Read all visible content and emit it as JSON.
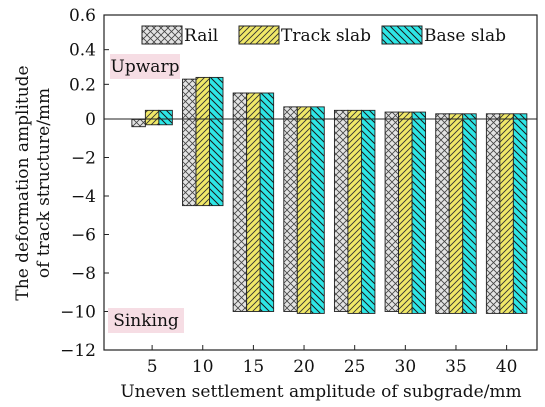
{
  "chart_data": {
    "type": "bar",
    "categories": [
      "5",
      "10",
      "15",
      "20",
      "25",
      "30",
      "35",
      "40"
    ],
    "xlabel": "Uneven settlement amplitude of subgrade/mm",
    "ylabel": [
      "The deformation amplitude",
      "of track structure/mm"
    ],
    "ylim": [
      -12,
      0.6
    ],
    "yticks": [
      "0.6",
      "0.4",
      "0.2",
      "0",
      "−2",
      "−4",
      "−6",
      "−8",
      "−10",
      "−12"
    ],
    "legend_position": "top",
    "series": [
      {
        "name": "Rail",
        "color": "#d9d9d9",
        "pattern": "crosshatch",
        "top": [
          -0.02,
          0.23,
          0.15,
          0.07,
          0.05,
          0.04,
          0.03,
          0.03
        ],
        "bottom": [
          -0.4,
          -4.5,
          -10.0,
          -10.0,
          -10.0,
          -10.0,
          -10.1,
          -10.1
        ]
      },
      {
        "name": "Track slab",
        "color": "#f0e868",
        "pattern": "diagonal",
        "top": [
          0.05,
          0.24,
          0.15,
          0.07,
          0.05,
          0.04,
          0.03,
          0.03
        ],
        "bottom": [
          -0.3,
          -4.5,
          -10.0,
          -10.1,
          -10.1,
          -10.1,
          -10.1,
          -10.1
        ]
      },
      {
        "name": "Base slab",
        "color": "#2ee6e6",
        "pattern": "diagonal",
        "top": [
          0.05,
          0.24,
          0.15,
          0.07,
          0.05,
          0.04,
          0.03,
          0.03
        ],
        "bottom": [
          -0.3,
          -4.5,
          -10.0,
          -10.1,
          -10.1,
          -10.1,
          -10.1,
          -10.1
        ]
      }
    ],
    "annotations": [
      {
        "text": "Upwarp",
        "position": "upper-left"
      },
      {
        "text": "Sinking",
        "position": "lower-left"
      }
    ]
  }
}
